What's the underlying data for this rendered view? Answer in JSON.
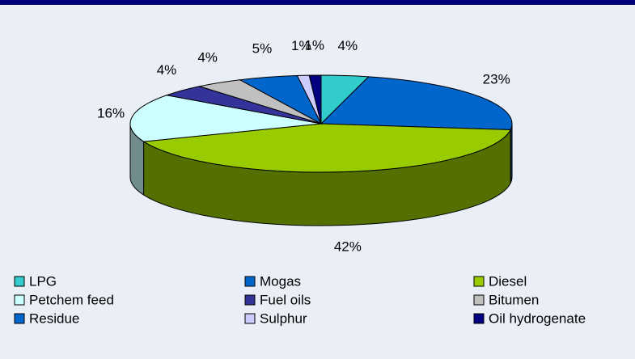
{
  "chart_data": {
    "type": "pie",
    "categories": [
      "LPG",
      "Mogas",
      "Diesel",
      "Petchem feed",
      "Fuel oils",
      "Bitumen",
      "Residue",
      "Sulphur",
      "Oil hydrogenate"
    ],
    "values": [
      4,
      23,
      42,
      16,
      4,
      4,
      5,
      1,
      1
    ],
    "value_labels": [
      "4%",
      "23%",
      "42%",
      "16%",
      "4%",
      "4%",
      "5%",
      "1%",
      "1%"
    ],
    "colors": [
      "#33cccc",
      "#0066cc",
      "#99cc00",
      "#ccffff",
      "#333399",
      "#c0c0c0",
      "#0066cc",
      "#ccccff",
      "#000080"
    ],
    "legend": "bottom"
  }
}
